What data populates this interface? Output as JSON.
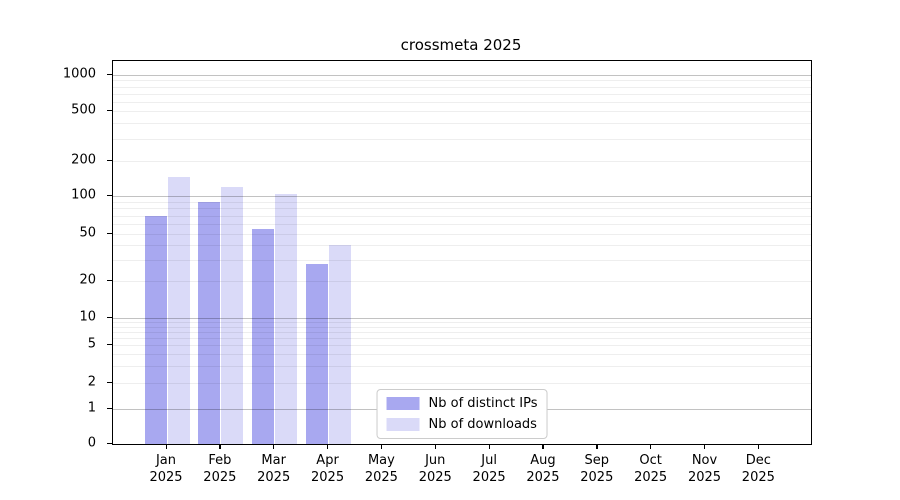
{
  "title": "crossmeta 2025",
  "colors": {
    "distinct_ips_bar": "#a8a8f0",
    "downloads_bar": "#dadaf8",
    "background": "#ffffff",
    "spine": "#000000"
  },
  "chart_data": {
    "type": "bar",
    "title": "crossmeta 2025",
    "categories": [
      "Jan 2025",
      "Feb 2025",
      "Mar 2025",
      "Apr 2025",
      "May 2025",
      "Jun 2025",
      "Jul 2025",
      "Aug 2025",
      "Sep 2025",
      "Oct 2025",
      "Nov 2025",
      "Dec 2025"
    ],
    "series": [
      {
        "name": "Nb of distinct IPs",
        "color": "#a8a8f0",
        "values": [
          70,
          90,
          55,
          28,
          null,
          null,
          null,
          null,
          null,
          null,
          null,
          null
        ]
      },
      {
        "name": "Nb of downloads",
        "color": "#dadaf8",
        "values": [
          145,
          120,
          105,
          40,
          null,
          null,
          null,
          null,
          null,
          null,
          null,
          null
        ]
      }
    ],
    "xlabel": "",
    "ylabel": "",
    "yticks": [
      0,
      1,
      2,
      5,
      10,
      20,
      50,
      100,
      200,
      500,
      1000
    ],
    "yscale": "symlog",
    "ylim": [
      0,
      1300
    ],
    "grid": true,
    "legend_position": "lower center"
  }
}
